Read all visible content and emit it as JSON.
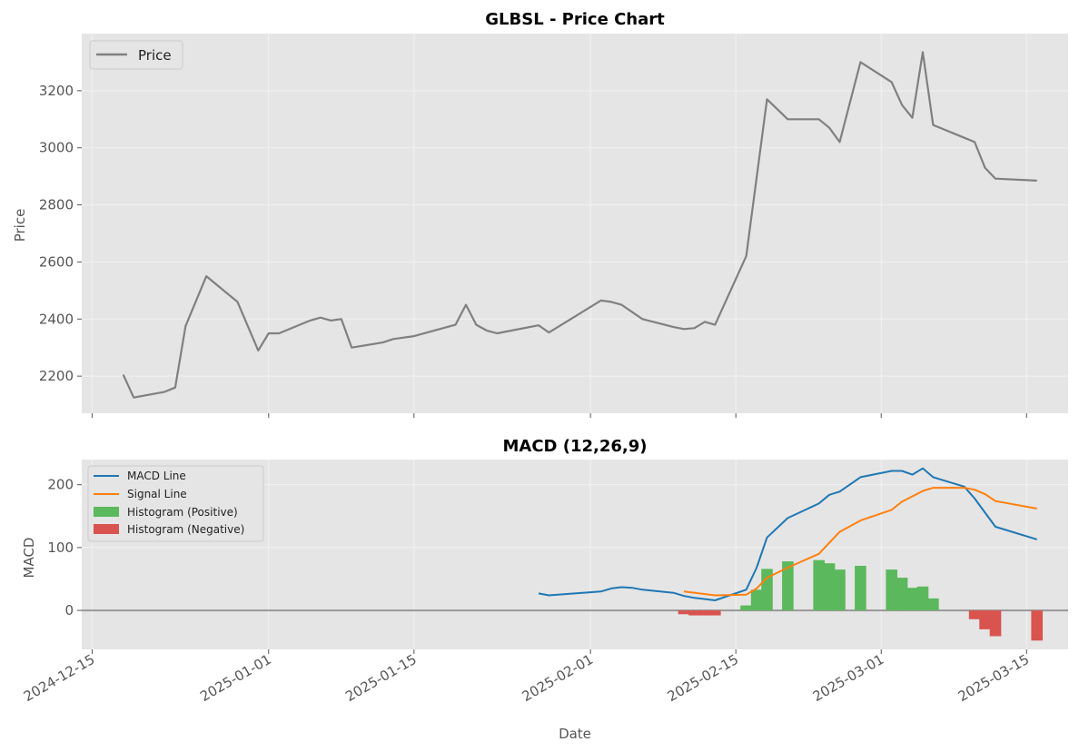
{
  "colors": {
    "price": "#808080",
    "macd": "#1f77b4",
    "signal": "#ff7f0e",
    "hist_pos": "#5cb85c",
    "hist_neg": "#d9534f",
    "panel_bg": "#e5e5e5",
    "zero_line": "#999999"
  },
  "chart_data": [
    {
      "type": "line",
      "title": "GLBSL - Price Chart",
      "xlabel": "",
      "ylabel": "Price",
      "legend": [
        "Price"
      ],
      "legend_position": "top-left",
      "grid": true,
      "xlim": [
        "2024-12-14",
        "2025-03-19"
      ],
      "ylim": [
        2070,
        3400
      ],
      "yticks": [
        2200,
        2400,
        2600,
        2800,
        3000,
        3200
      ],
      "series": [
        {
          "name": "Price",
          "x": [
            "2024-12-18",
            "2024-12-19",
            "2024-12-22",
            "2024-12-23",
            "2024-12-24",
            "2024-12-26",
            "2024-12-29",
            "2024-12-31",
            "2025-01-01",
            "2025-01-02",
            "2025-01-05",
            "2025-01-06",
            "2025-01-07",
            "2025-01-08",
            "2025-01-09",
            "2025-01-12",
            "2025-01-13",
            "2025-01-15",
            "2025-01-19",
            "2025-01-20",
            "2025-01-21",
            "2025-01-22",
            "2025-01-23",
            "2025-01-27",
            "2025-01-28",
            "2025-02-02",
            "2025-02-03",
            "2025-02-04",
            "2025-02-06",
            "2025-02-09",
            "2025-02-10",
            "2025-02-11",
            "2025-02-12",
            "2025-02-13",
            "2025-02-16",
            "2025-02-18",
            "2025-02-20",
            "2025-02-23",
            "2025-02-24",
            "2025-02-25",
            "2025-02-27",
            "2025-03-02",
            "2025-03-03",
            "2025-03-04",
            "2025-03-05",
            "2025-03-06",
            "2025-03-09",
            "2025-03-10",
            "2025-03-11",
            "2025-03-12",
            "2025-03-16"
          ],
          "values": [
            2205,
            2125,
            2145,
            2160,
            2375,
            2550,
            2460,
            2290,
            2350,
            2350,
            2395,
            2405,
            2395,
            2400,
            2300,
            2318,
            2330,
            2340,
            2380,
            2450,
            2380,
            2360,
            2350,
            2378,
            2353,
            2465,
            2460,
            2450,
            2400,
            2372,
            2365,
            2368,
            2390,
            2380,
            2620,
            3170,
            3100,
            3100,
            3070,
            3020,
            3300,
            3230,
            3150,
            3105,
            3335,
            3080,
            3035,
            3020,
            2930,
            2892,
            2885
          ]
        }
      ]
    },
    {
      "type": "line",
      "title": "MACD (12,26,9)",
      "xlabel": "Date",
      "ylabel": "MACD",
      "legend": [
        "MACD Line",
        "Signal Line",
        "Histogram (Positive)",
        "Histogram (Negative)"
      ],
      "legend_position": "top-left",
      "grid": true,
      "xlim": [
        "2024-12-14",
        "2025-03-19"
      ],
      "ylim": [
        -62,
        240
      ],
      "yticks": [
        0,
        100,
        200
      ],
      "xticks": [
        "2024-12-15",
        "2025-01-01",
        "2025-01-15",
        "2025-02-01",
        "2025-02-15",
        "2025-03-01",
        "2025-03-15"
      ],
      "series": [
        {
          "name": "MACD Line",
          "x": [
            "2025-01-27",
            "2025-01-28",
            "2025-02-02",
            "2025-02-03",
            "2025-02-04",
            "2025-02-05",
            "2025-02-06",
            "2025-02-09",
            "2025-02-10",
            "2025-02-11",
            "2025-02-12",
            "2025-02-13",
            "2025-02-16",
            "2025-02-17",
            "2025-02-18",
            "2025-02-20",
            "2025-02-23",
            "2025-02-24",
            "2025-02-25",
            "2025-02-27",
            "2025-03-02",
            "2025-03-03",
            "2025-03-04",
            "2025-03-05",
            "2025-03-06",
            "2025-03-09",
            "2025-03-10",
            "2025-03-12",
            "2025-03-16"
          ],
          "values": [
            27,
            24,
            30,
            35,
            37,
            36,
            33,
            28,
            23,
            20,
            18,
            16,
            33,
            68,
            116,
            147,
            170,
            184,
            189,
            212,
            222,
            222,
            216,
            226,
            212,
            197,
            178,
            133,
            113
          ]
        },
        {
          "name": "Signal Line",
          "x": [
            "2025-02-10",
            "2025-02-13",
            "2025-02-16",
            "2025-02-17",
            "2025-02-18",
            "2025-02-20",
            "2025-02-23",
            "2025-02-25",
            "2025-02-27",
            "2025-03-02",
            "2025-03-03",
            "2025-03-05",
            "2025-03-06",
            "2025-03-09",
            "2025-03-10",
            "2025-03-11",
            "2025-03-12",
            "2025-03-16"
          ],
          "values": [
            30,
            24,
            25,
            35,
            52,
            68,
            90,
            125,
            143,
            160,
            173,
            190,
            195,
            195,
            192,
            185,
            174,
            162
          ]
        },
        {
          "name": "Histogram",
          "x": [
            "2025-02-10",
            "2025-02-11",
            "2025-02-12",
            "2025-02-13",
            "2025-02-16",
            "2025-02-17",
            "2025-02-18",
            "2025-02-20",
            "2025-02-23",
            "2025-02-24",
            "2025-02-25",
            "2025-02-27",
            "2025-03-02",
            "2025-03-03",
            "2025-03-04",
            "2025-03-05",
            "2025-03-06",
            "2025-03-10",
            "2025-03-11",
            "2025-03-12",
            "2025-03-16"
          ],
          "values": [
            -6,
            -8,
            -8,
            -8,
            8,
            33,
            66,
            78,
            80,
            75,
            65,
            71,
            65,
            52,
            36,
            38,
            19,
            -14,
            -30,
            -41,
            -48
          ]
        }
      ]
    }
  ]
}
